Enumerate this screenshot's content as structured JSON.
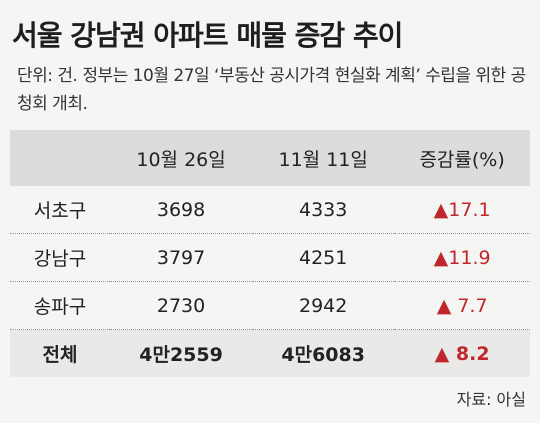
{
  "header": {
    "title": "서울 강남권 아파트 매물 증감 추이",
    "note": "단위: 건. 정부는 10월 27일 ‘부동산 공시가격 현실화 계획’ 수립을 위한 공청회 개최."
  },
  "table": {
    "columns": [
      "",
      "10월 26일",
      "11월 11일",
      "증감률(%)"
    ],
    "rows": [
      [
        "서초구",
        "3698",
        "4333",
        "▲17.1"
      ],
      [
        "강남구",
        "3797",
        "4251",
        "▲11.9"
      ],
      [
        "송파구",
        "2730",
        "2942",
        "▲ 7.7"
      ],
      [
        "전체",
        "4만2559",
        "4만6083",
        "▲ 8.2"
      ]
    ]
  },
  "source": "자료: 아실"
}
